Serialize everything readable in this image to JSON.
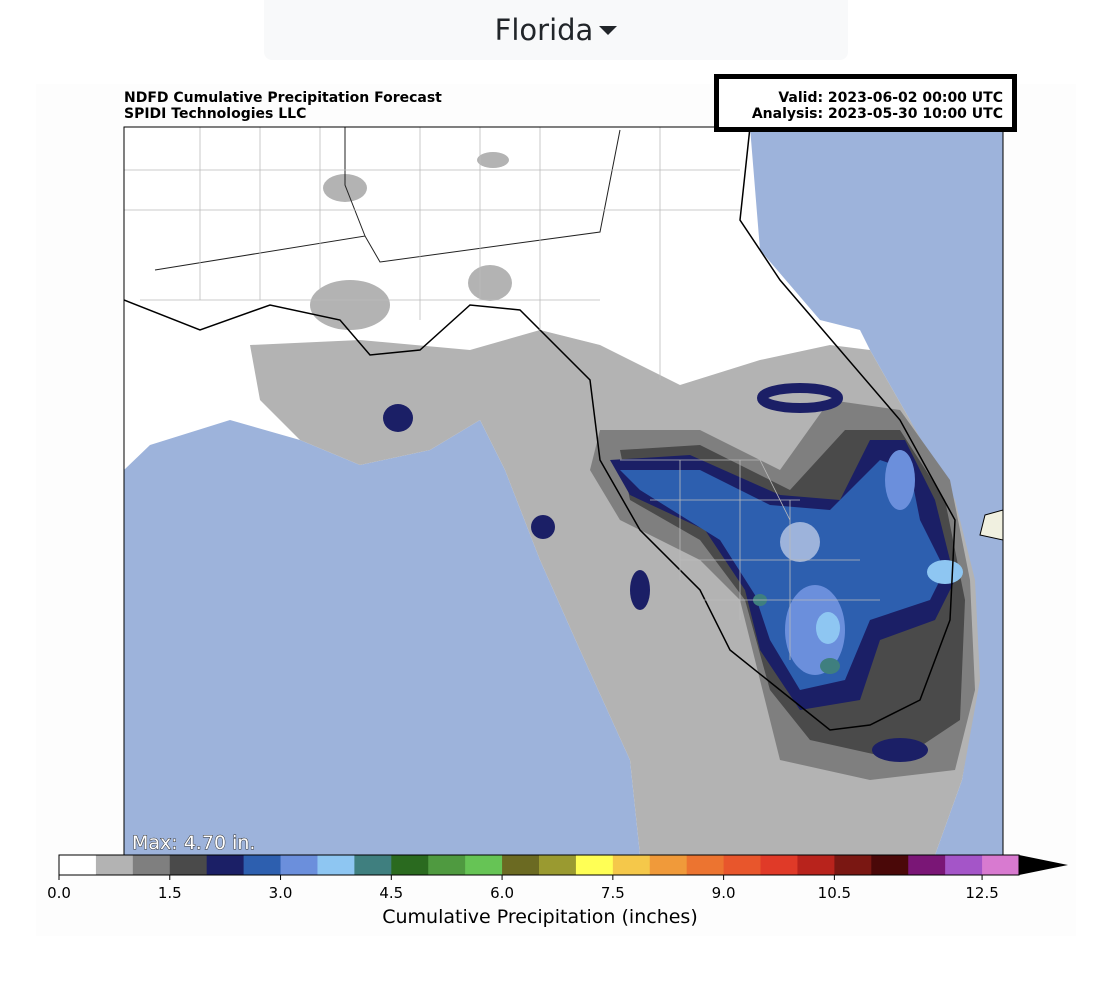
{
  "dropdown": {
    "label": "Florida"
  },
  "figure": {
    "title": "NDFD Cumulative Precipitation Forecast",
    "subtitle": "SPIDI Technologies LLC",
    "valid": "Valid: 2023-06-02 00:00 UTC",
    "analysis": "Analysis: 2023-05-30 10:00 UTC",
    "max_label": "Max: 4.70 in.",
    "colorbar": {
      "label": "Cumulative Precipitation (inches)",
      "lim": [
        0,
        13
      ],
      "ticks": [
        {
          "value": 0,
          "label": "0.0"
        },
        {
          "value": 1.5,
          "label": "1.5"
        },
        {
          "value": 3,
          "label": "3.0"
        },
        {
          "value": 4.5,
          "label": "4.5"
        },
        {
          "value": 6,
          "label": "6.0"
        },
        {
          "value": 7.5,
          "label": "7.5"
        },
        {
          "value": 9,
          "label": "9.0"
        },
        {
          "value": 10.5,
          "label": "10.5"
        },
        {
          "value": 12.5,
          "label": "12.5"
        }
      ],
      "colors": [
        "#ffffff",
        "#b3b3b3",
        "#7f7f7f",
        "#4a4a4a",
        "#1b1f66",
        "#2d5faf",
        "#6b8fdc",
        "#8ec6f2",
        "#3f7f7f",
        "#2a6a1f",
        "#4f9a40",
        "#66c455",
        "#6b6a22",
        "#9a9a30",
        "#ffff55",
        "#f5c84a",
        "#f09a3a",
        "#ec7430",
        "#e8562c",
        "#e03a28",
        "#b8231c",
        "#7a1712",
        "#4a0808",
        "#7a1676",
        "#a455c8",
        "#d87ad0"
      ]
    }
  }
}
